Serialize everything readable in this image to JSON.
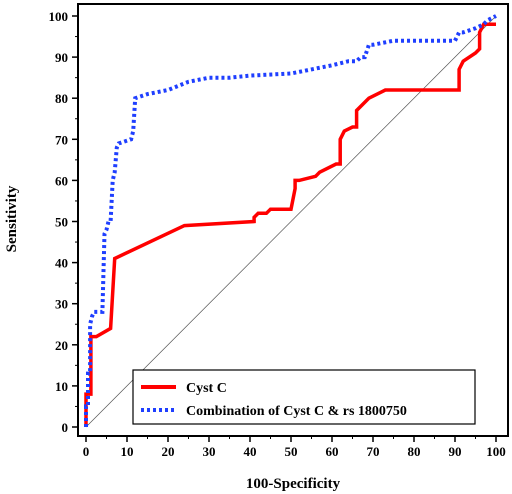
{
  "chart_data": {
    "type": "line",
    "title": "",
    "xlabel": "100-Specificity",
    "ylabel": "Sensitivity",
    "xlim": [
      0,
      100
    ],
    "ylim": [
      0,
      100
    ],
    "xticks": [
      "0",
      "10",
      "20",
      "30",
      "40",
      "50",
      "60",
      "70",
      "80",
      "90",
      "100"
    ],
    "yticks": [
      "0",
      "10",
      "20",
      "30",
      "40",
      "50",
      "60",
      "70",
      "80",
      "90",
      "100"
    ],
    "grid": false,
    "legend_position": "bottom-right",
    "reference_line": {
      "x": [
        0,
        100
      ],
      "y": [
        0,
        100
      ]
    },
    "series": [
      {
        "name": "Cyst C",
        "color": "#ff0000",
        "style": "solid",
        "x": [
          0,
          0,
          1.2,
          1.2,
          2.5,
          6,
          6,
          7,
          7,
          24,
          41,
          41,
          42,
          44,
          45,
          46,
          50,
          51,
          51,
          52,
          56,
          57,
          61,
          62,
          62,
          63,
          65,
          66,
          66,
          67,
          69,
          73,
          90,
          91,
          91,
          92,
          95,
          96,
          96,
          97,
          100
        ],
        "y": [
          0,
          8,
          8,
          22,
          22,
          24,
          24,
          41,
          41,
          49,
          50,
          51,
          52,
          52,
          53,
          53,
          53,
          58,
          60,
          60,
          61,
          62,
          64,
          64,
          70,
          72,
          73,
          73,
          77,
          78,
          80,
          82,
          82,
          82,
          87,
          89,
          91,
          92,
          96,
          98,
          98
        ]
      },
      {
        "name": "Combination of Cyst C & rs 1800750",
        "color": "#1f3fff",
        "style": "dotted",
        "x": [
          0,
          0,
          0.5,
          0.5,
          1,
          1,
          1.5,
          2,
          4,
          4.5,
          5,
          5.5,
          6,
          6.5,
          7,
          7.5,
          8,
          11,
          11.5,
          12,
          15,
          20,
          25,
          30,
          35,
          40,
          50,
          55,
          60,
          62,
          64,
          66,
          67,
          68,
          69,
          70,
          75,
          90,
          91,
          92,
          95,
          97,
          98,
          100
        ],
        "y": [
          0,
          5,
          5,
          13,
          13,
          25,
          27,
          28,
          28,
          47,
          48,
          50,
          50,
          60,
          62,
          68,
          69,
          70,
          72,
          80,
          81,
          82,
          84,
          85,
          85,
          85.5,
          86,
          87,
          88,
          88.5,
          89,
          89,
          90,
          90,
          93,
          93,
          94,
          94,
          96,
          96,
          97,
          98,
          99,
          100
        ]
      }
    ]
  }
}
